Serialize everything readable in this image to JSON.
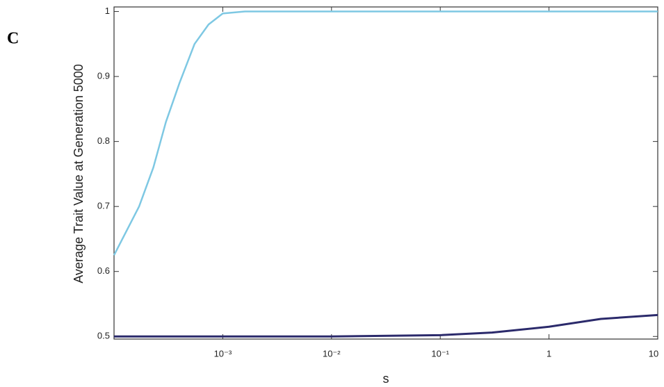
{
  "chart_data": {
    "type": "line",
    "panel_label": "C",
    "x_label": "s",
    "y_label": "Average Trait Value at Generation 5000",
    "x": [
      0.0001,
      0.00017,
      0.00023,
      0.0003,
      0.0004,
      0.00055,
      0.00074,
      0.001,
      0.0016,
      0.01,
      0.1,
      0.3,
      1,
      3,
      10
    ],
    "series": [
      {
        "color": "#7ec8e3",
        "values": [
          0.625,
          0.7,
          0.76,
          0.83,
          0.89,
          0.95,
          0.98,
          0.997,
          1,
          1,
          1,
          1,
          1,
          1,
          1
        ]
      },
      {
        "color": "#2b2a6b",
        "values": [
          0.5,
          0.5,
          0.5,
          0.5,
          0.5,
          0.5,
          0.5,
          0.5,
          0.5,
          0.5,
          0.502,
          0.506,
          0.515,
          0.527,
          0.533
        ]
      }
    ],
    "xscale": "log",
    "xlim": [
      0.0001,
      10
    ],
    "xticks": [
      {
        "value": 0.001,
        "label": "10⁻³"
      },
      {
        "value": 0.01,
        "label": "10⁻²"
      },
      {
        "value": 0.1,
        "label": "10⁻¹"
      },
      1,
      10
    ],
    "ylim": [
      0.496,
      1.007
    ],
    "yticks": [
      0.5,
      0.6,
      0.7,
      0.8,
      0.9,
      1
    ]
  }
}
